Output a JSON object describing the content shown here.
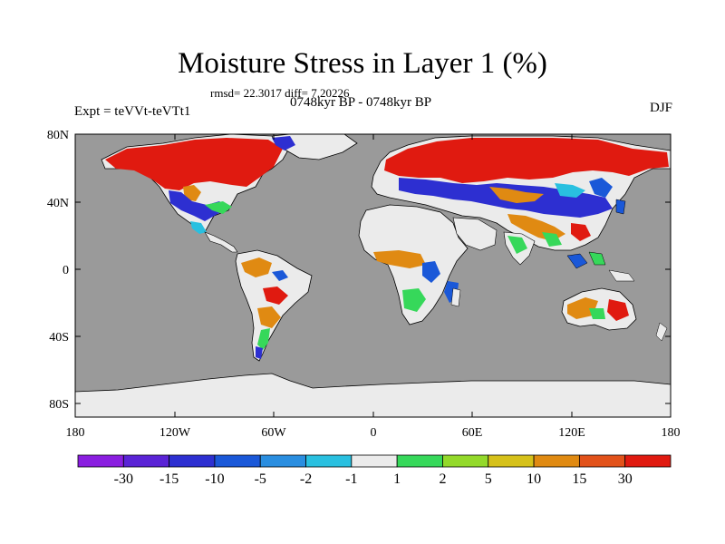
{
  "title": "Moisture Stress in Layer 1 (%)",
  "stats": "rmsd= 22.3017 diff= 7.20226",
  "period": "0748kyr BP - 0748kyr BP",
  "experiment": "Expt = teVVt-teVTt1",
  "season": "DJF",
  "colors": {
    "ocean": "#9a9a9a",
    "land_neutral": "#ebebeb",
    "coast": "#000000"
  },
  "lat_ticks": [
    "80N",
    "40N",
    "0",
    "40S",
    "80S"
  ],
  "lon_ticks": [
    "180",
    "120W",
    "60W",
    "0",
    "60E",
    "120E",
    "180"
  ],
  "colorbar": {
    "colors": [
      "#8a1ee0",
      "#5a23d6",
      "#2d2fd1",
      "#1a58d8",
      "#2a8ee0",
      "#29c0e0",
      "#ebebeb",
      "#36d85a",
      "#93d92a",
      "#d6c11a",
      "#e08a12",
      "#e2521a",
      "#e01a10"
    ],
    "labels": [
      "-30",
      "-15",
      "-10",
      "-5",
      "-2",
      "-1",
      "1",
      "2",
      "5",
      "10",
      "15",
      "30"
    ]
  }
}
